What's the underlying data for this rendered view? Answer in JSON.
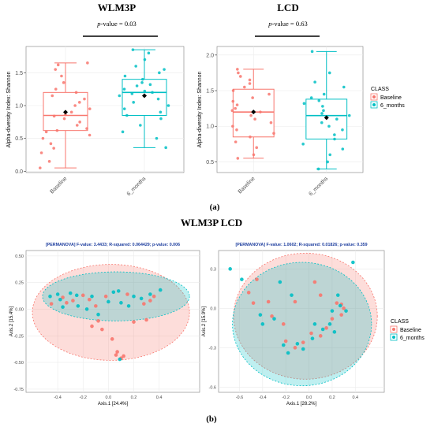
{
  "colors": {
    "baseline": "#f8766d",
    "six_months": "#00bfc4",
    "panel_bg": "#ffffff",
    "grid": "#ebebeb",
    "axis_text": "#4d4d4d",
    "permanova_text": "#1f3f9f"
  },
  "figure": {
    "panel_a_label": "(a)",
    "panel_b_label": "(b)",
    "panel_b_title": "WLM3P LCD"
  },
  "chart_data": [
    {
      "type": "box",
      "title": "WLM3P",
      "pvalue_prefix": "p",
      "pvalue_suffix": "-value = 0.03",
      "ylabel": "Alpha-diversity Index: Shannon",
      "xlabel": "",
      "ylim": [
        -0.02,
        1.9
      ],
      "yticks": [
        "0.0",
        "0.5",
        "1.0",
        "1.5"
      ],
      "categories": [
        "Baseline",
        "6_months"
      ],
      "grid": true,
      "boxes": [
        {
          "name": "Baseline",
          "min": 0.05,
          "q1": 0.62,
          "median": 0.85,
          "q3": 1.2,
          "max": 1.65,
          "mean": 0.9,
          "points": [
            0.05,
            0.15,
            0.28,
            0.35,
            0.42,
            0.5,
            0.55,
            0.6,
            0.62,
            0.65,
            0.7,
            0.75,
            0.8,
            0.84,
            0.86,
            0.9,
            0.95,
            1.0,
            1.05,
            1.1,
            1.15,
            1.2,
            1.25,
            1.35,
            1.45,
            1.55,
            1.62,
            1.65
          ]
        },
        {
          "name": "6_months",
          "min": 0.36,
          "q1": 0.85,
          "median": 1.2,
          "q3": 1.4,
          "max": 1.85,
          "mean": 1.15,
          "points": [
            0.36,
            0.5,
            0.6,
            0.7,
            0.8,
            0.85,
            0.9,
            0.95,
            1.0,
            1.05,
            1.1,
            1.15,
            1.18,
            1.2,
            1.22,
            1.25,
            1.3,
            1.32,
            1.35,
            1.4,
            1.45,
            1.5,
            1.55,
            1.6,
            1.7,
            1.8,
            1.85
          ]
        }
      ]
    },
    {
      "type": "box",
      "title": "LCD",
      "pvalue_prefix": "p",
      "pvalue_suffix": "-value = 0.63",
      "ylabel": "Alpha-diversity Index: Shannon",
      "xlabel": "",
      "ylim": [
        0.35,
        2.12
      ],
      "yticks": [
        "0.5",
        "1.0",
        "1.5",
        "2.0"
      ],
      "categories": [
        "Baseline",
        "6_months"
      ],
      "grid": true,
      "legend": {
        "title": "CLASS",
        "entries": [
          "Baseline",
          "6_months"
        ],
        "position": "right"
      },
      "boxes": [
        {
          "name": "Baseline",
          "min": 0.55,
          "q1": 0.85,
          "median": 1.2,
          "q3": 1.52,
          "max": 1.8,
          "mean": 1.2,
          "points": [
            0.55,
            0.6,
            0.7,
            0.78,
            0.85,
            0.9,
            0.95,
            1.0,
            1.05,
            1.1,
            1.15,
            1.2,
            1.22,
            1.25,
            1.3,
            1.35,
            1.4,
            1.45,
            1.5,
            1.55,
            1.6,
            1.65,
            1.7,
            1.75,
            1.8
          ]
        },
        {
          "name": "6_months",
          "min": 0.4,
          "q1": 0.82,
          "median": 1.15,
          "q3": 1.38,
          "max": 2.05,
          "mean": 1.12,
          "points": [
            0.4,
            0.5,
            0.6,
            0.68,
            0.75,
            0.82,
            0.88,
            0.95,
            1.0,
            1.05,
            1.1,
            1.15,
            1.18,
            1.22,
            1.28,
            1.32,
            1.36,
            1.4,
            1.45,
            1.55,
            1.62,
            1.75,
            2.05
          ]
        }
      ]
    },
    {
      "type": "scatter",
      "title": "[PERMANOVA] F-value: 3.4433; R-squared: 0.064429; p-value: 0.006",
      "xlabel": "Axis.1   [24.4%]",
      "ylabel": "Axis.2   [15.4%]",
      "xlim": [
        -0.65,
        0.72
      ],
      "ylim": [
        -0.78,
        0.55
      ],
      "xticks": [
        "-0.4",
        "-0.2",
        "0.0",
        "0.2",
        "0.4"
      ],
      "yticks": [
        "0.50",
        "0.25",
        "0.00",
        "-0.25",
        "-0.50",
        "-0.75"
      ],
      "grid": true,
      "ellipses": [
        {
          "name": "Baseline",
          "cx": 0.02,
          "cy": -0.03,
          "rx": 0.62,
          "ry": 0.45
        },
        {
          "name": "6_months",
          "cx": 0.06,
          "cy": 0.12,
          "rx": 0.58,
          "ry": 0.23
        }
      ],
      "series": [
        {
          "name": "Baseline",
          "points": [
            [
              -0.45,
              0.05
            ],
            [
              -0.36,
              0.11
            ],
            [
              -0.33,
              0.06
            ],
            [
              -0.28,
              0.08
            ],
            [
              -0.2,
              0.13
            ],
            [
              -0.15,
              0.09
            ],
            [
              -0.02,
              0.12
            ],
            [
              -0.13,
              -0.16
            ],
            [
              -0.05,
              -0.19
            ],
            [
              -0.08,
              -0.11
            ],
            [
              0.03,
              -0.28
            ],
            [
              0.07,
              -0.4
            ],
            [
              0.06,
              -0.43
            ],
            [
              0.12,
              -0.44
            ],
            [
              0.1,
              -0.46
            ],
            [
              0.2,
              -0.12
            ],
            [
              0.3,
              -0.1
            ],
            [
              0.33,
              0.08
            ],
            [
              0.36,
              0.12
            ],
            [
              0.28,
              0.05
            ],
            [
              -0.1,
              0.03
            ],
            [
              0.15,
              0.14
            ]
          ]
        },
        {
          "name": "6_months",
          "points": [
            [
              -0.46,
              0.12
            ],
            [
              -0.4,
              0.14
            ],
            [
              -0.38,
              0.09
            ],
            [
              -0.36,
              0.02
            ],
            [
              -0.3,
              0.15
            ],
            [
              -0.25,
              0.13
            ],
            [
              -0.24,
              0.03
            ],
            [
              -0.17,
              0.0
            ],
            [
              -0.08,
              -0.05
            ],
            [
              0.0,
              0.07
            ],
            [
              0.04,
              0.16
            ],
            [
              0.08,
              0.17
            ],
            [
              0.1,
              0.06
            ],
            [
              0.2,
              0.12
            ],
            [
              0.26,
              0.1
            ],
            [
              0.33,
              0.14
            ],
            [
              0.41,
              0.18
            ],
            [
              -0.13,
              0.12
            ],
            [
              0.09,
              -0.47
            ],
            [
              0.16,
              0.03
            ]
          ]
        }
      ]
    },
    {
      "type": "scatter",
      "title": "[PERMANOVA] F-value: 1.0602; R-squared: 0.01826; p-value: 0.359",
      "xlabel": "Axis.1   [28.2%]",
      "ylabel": "Axis.2   [15.9%]",
      "xlim": [
        -0.78,
        0.65
      ],
      "ylim": [
        -0.64,
        0.44
      ],
      "xticks": [
        "-0.6",
        "-0.4",
        "-0.2",
        "0.0",
        "0.2",
        "0.4"
      ],
      "yticks": [
        "0.3",
        "0.0",
        "-0.3",
        "-0.6"
      ],
      "grid": true,
      "legend": {
        "title": "CLASS",
        "entries": [
          "Baseline",
          "6_months"
        ],
        "position": "right"
      },
      "ellipses": [
        {
          "name": "Baseline",
          "cx": -0.03,
          "cy": -0.06,
          "rx": 0.62,
          "ry": 0.48
        },
        {
          "name": "6_months",
          "cx": -0.06,
          "cy": -0.12,
          "rx": 0.6,
          "ry": 0.47
        }
      ],
      "series": [
        {
          "name": "Baseline",
          "points": [
            [
              -0.45,
              0.22
            ],
            [
              -0.52,
              0.12
            ],
            [
              -0.48,
              0.04
            ],
            [
              -0.35,
              0.05
            ],
            [
              -0.32,
              -0.06
            ],
            [
              -0.22,
              -0.12
            ],
            [
              -0.2,
              -0.25
            ],
            [
              -0.12,
              -0.3
            ],
            [
              -0.05,
              -0.26
            ],
            [
              0.02,
              -0.19
            ],
            [
              0.1,
              -0.21
            ],
            [
              0.2,
              -0.08
            ],
            [
              0.24,
              0.04
            ],
            [
              0.28,
              0.03
            ],
            [
              0.3,
              0.0
            ],
            [
              0.28,
              -0.05
            ],
            [
              0.1,
              0.1
            ],
            [
              0.05,
              0.2
            ],
            [
              -0.12,
              0.05
            ],
            [
              0.15,
              -0.15
            ]
          ]
        },
        {
          "name": "6_months",
          "points": [
            [
              -0.68,
              0.3
            ],
            [
              -0.58,
              0.22
            ],
            [
              -0.42,
              -0.05
            ],
            [
              -0.4,
              -0.12
            ],
            [
              -0.3,
              -0.08
            ],
            [
              -0.25,
              0.2
            ],
            [
              -0.15,
              0.1
            ],
            [
              -0.22,
              -0.28
            ],
            [
              -0.18,
              -0.34
            ],
            [
              -0.1,
              -0.27
            ],
            [
              -0.05,
              -0.31
            ],
            [
              0.03,
              -0.23
            ],
            [
              0.05,
              -0.12
            ],
            [
              0.12,
              -0.16
            ],
            [
              0.18,
              -0.12
            ],
            [
              0.2,
              -0.02
            ],
            [
              0.25,
              0.1
            ],
            [
              0.32,
              -0.02
            ],
            [
              0.27,
              0.02
            ],
            [
              0.38,
              0.35
            ],
            [
              0.22,
              -0.18
            ]
          ]
        }
      ]
    }
  ]
}
